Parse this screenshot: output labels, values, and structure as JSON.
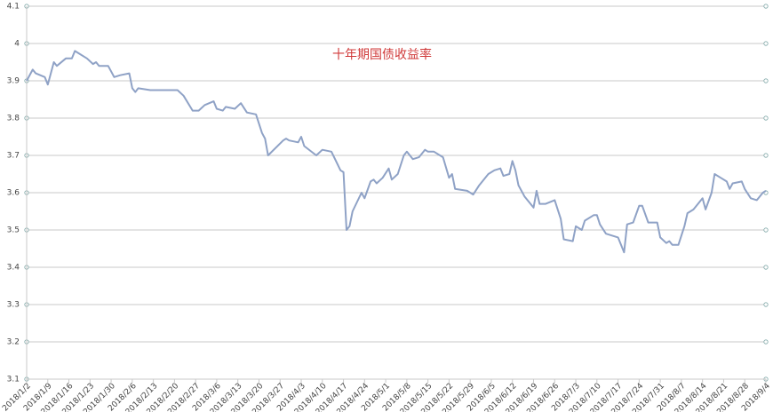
{
  "chart_data": {
    "type": "line",
    "title": "十年期国债收益率",
    "x": [
      "2018/1/2",
      "2018/1/4",
      "2018/1/5",
      "2018/1/8",
      "2018/1/9",
      "2018/1/11",
      "2018/1/12",
      "2018/1/15",
      "2018/1/17",
      "2018/1/18",
      "2018/1/19",
      "2018/1/22",
      "2018/1/24",
      "2018/1/25",
      "2018/1/26",
      "2018/1/29",
      "2018/1/31",
      "2018/2/2",
      "2018/2/5",
      "2018/2/6",
      "2018/2/7",
      "2018/2/8",
      "2018/2/12",
      "2018/2/21",
      "2018/2/23",
      "2018/2/26",
      "2018/2/28",
      "2018/3/2",
      "2018/3/5",
      "2018/3/6",
      "2018/3/8",
      "2018/3/9",
      "2018/3/12",
      "2018/3/14",
      "2018/3/16",
      "2018/3/19",
      "2018/3/21",
      "2018/3/22",
      "2018/3/23",
      "2018/3/28",
      "2018/3/29",
      "2018/3/30",
      "2018/4/2",
      "2018/4/3",
      "2018/4/4",
      "2018/4/8",
      "2018/4/10",
      "2018/4/13",
      "2018/4/16",
      "2018/4/17",
      "2018/4/18",
      "2018/4/19",
      "2018/4/20",
      "2018/4/23",
      "2018/4/24",
      "2018/4/26",
      "2018/4/27",
      "2018/4/28",
      "2018/4/30",
      "2018/5/2",
      "2018/5/3",
      "2018/5/5",
      "2018/5/7",
      "2018/5/8",
      "2018/5/10",
      "2018/5/12",
      "2018/5/14",
      "2018/5/15",
      "2018/5/17",
      "2018/5/20",
      "2018/5/22",
      "2018/5/23",
      "2018/5/24",
      "2018/5/28",
      "2018/5/30",
      "2018/6/1",
      "2018/6/4",
      "2018/6/6",
      "2018/6/8",
      "2018/6/9",
      "2018/6/11",
      "2018/6/12",
      "2018/6/13",
      "2018/6/14",
      "2018/6/16",
      "2018/6/19",
      "2018/6/20",
      "2018/6/21",
      "2018/6/23",
      "2018/6/26",
      "2018/6/28",
      "2018/6/29",
      "2018/7/2",
      "2018/7/3",
      "2018/7/5",
      "2018/7/6",
      "2018/7/9",
      "2018/7/10",
      "2018/7/11",
      "2018/7/13",
      "2018/7/17",
      "2018/7/19",
      "2018/7/20",
      "2018/7/22",
      "2018/7/24",
      "2018/7/25",
      "2018/7/27",
      "2018/7/30",
      "2018/7/31",
      "2018/8/2",
      "2018/8/3",
      "2018/8/4",
      "2018/8/6",
      "2018/8/8",
      "2018/8/9",
      "2018/8/11",
      "2018/8/14",
      "2018/8/15",
      "2018/8/17",
      "2018/8/18",
      "2018/8/20",
      "2018/8/22",
      "2018/8/23",
      "2018/8/24",
      "2018/8/27",
      "2018/8/28",
      "2018/8/30",
      "2018/9/1",
      "2018/9/3",
      "2018/9/4"
    ],
    "series": [
      {
        "color": "#8fa2c6",
        "values": [
          3.9,
          3.93,
          3.92,
          3.91,
          3.89,
          3.95,
          3.94,
          3.96,
          3.96,
          3.98,
          3.975,
          3.96,
          3.945,
          3.95,
          3.94,
          3.94,
          3.91,
          3.915,
          3.92,
          3.88,
          3.87,
          3.88,
          3.875,
          3.875,
          3.86,
          3.82,
          3.82,
          3.835,
          3.845,
          3.825,
          3.82,
          3.83,
          3.825,
          3.84,
          3.815,
          3.81,
          3.76,
          3.745,
          3.7,
          3.74,
          3.745,
          3.74,
          3.735,
          3.75,
          3.725,
          3.7,
          3.715,
          3.71,
          3.66,
          3.655,
          3.5,
          3.51,
          3.55,
          3.6,
          3.585,
          3.63,
          3.635,
          3.625,
          3.64,
          3.665,
          3.635,
          3.65,
          3.7,
          3.71,
          3.69,
          3.695,
          3.715,
          3.71,
          3.71,
          3.695,
          3.64,
          3.65,
          3.61,
          3.605,
          3.595,
          3.62,
          3.65,
          3.66,
          3.665,
          3.645,
          3.65,
          3.685,
          3.66,
          3.62,
          3.59,
          3.56,
          3.605,
          3.57,
          3.57,
          3.58,
          3.53,
          3.475,
          3.47,
          3.51,
          3.5,
          3.525,
          3.54,
          3.54,
          3.515,
          3.49,
          3.48,
          3.44,
          3.515,
          3.52,
          3.565,
          3.565,
          3.52,
          3.52,
          3.48,
          3.465,
          3.47,
          3.46,
          3.46,
          3.51,
          3.545,
          3.555,
          3.585,
          3.555,
          3.6,
          3.65,
          3.64,
          3.63,
          3.61,
          3.625,
          3.63,
          3.61,
          3.585,
          3.58,
          3.6,
          3.605
        ]
      }
    ],
    "xlim": [
      "2018/1/2",
      "2018/9/4"
    ],
    "xticks": [
      "2018/1/2",
      "2018/1/9",
      "2018/1/16",
      "2018/1/23",
      "2018/1/30",
      "2018/2/6",
      "2018/2/13",
      "2018/2/20",
      "2018/2/27",
      "2018/3/6",
      "2018/3/13",
      "2018/3/20",
      "2018/3/27",
      "2018/4/3",
      "2018/4/10",
      "2018/4/17",
      "2018/4/24",
      "2018/5/1",
      "2018/5/8",
      "2018/5/15",
      "2018/5/22",
      "2018/5/29",
      "2018/6/5",
      "2018/6/12",
      "2018/6/19",
      "2018/6/26",
      "2018/7/3",
      "2018/7/10",
      "2018/7/17",
      "2018/7/24",
      "2018/7/31",
      "2018/8/7",
      "2018/8/14",
      "2018/8/21",
      "2018/8/28",
      "2018/9/4"
    ],
    "ylim": [
      3.1,
      4.1
    ],
    "yticks": [
      3.1,
      3.2,
      3.3,
      3.4,
      3.5,
      3.6,
      3.7,
      3.8,
      3.9,
      4,
      4.1
    ],
    "grid": true
  }
}
